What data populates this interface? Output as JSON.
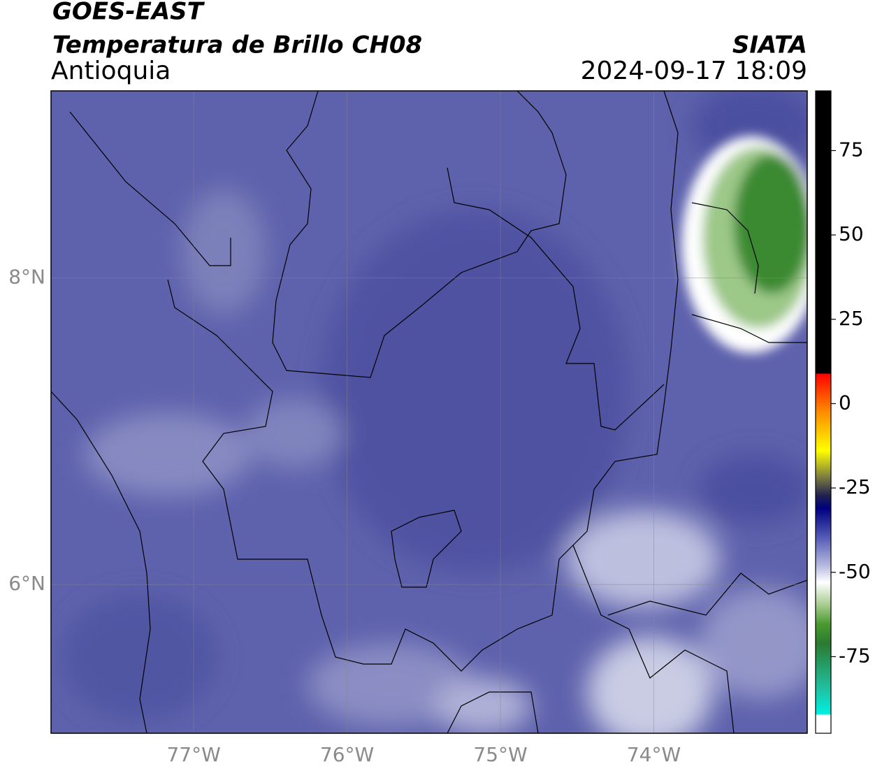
{
  "header": {
    "satellite": "GOES-EAST",
    "product": "Temperatura de Brillo CH08",
    "region": "Antioquia",
    "agency": "SIATA",
    "datetime": "2024-09-17 18:09"
  },
  "map": {
    "xlim": [
      -77.93,
      -73.0
    ],
    "ylim": [
      5.03,
      9.22
    ],
    "xticks": [
      {
        "value": -77,
        "label": "77°W"
      },
      {
        "value": -76,
        "label": "76°W"
      },
      {
        "value": -75,
        "label": "75°W"
      },
      {
        "value": -74,
        "label": "74°W"
      }
    ],
    "yticks": [
      {
        "value": 8,
        "label": "8°N"
      },
      {
        "value": 6,
        "label": "6°N"
      }
    ]
  },
  "colorbar": {
    "lim": [
      -97.7,
      92.7
    ],
    "ticks": [
      75,
      50,
      25,
      0,
      -25,
      -50,
      -75
    ]
  }
}
